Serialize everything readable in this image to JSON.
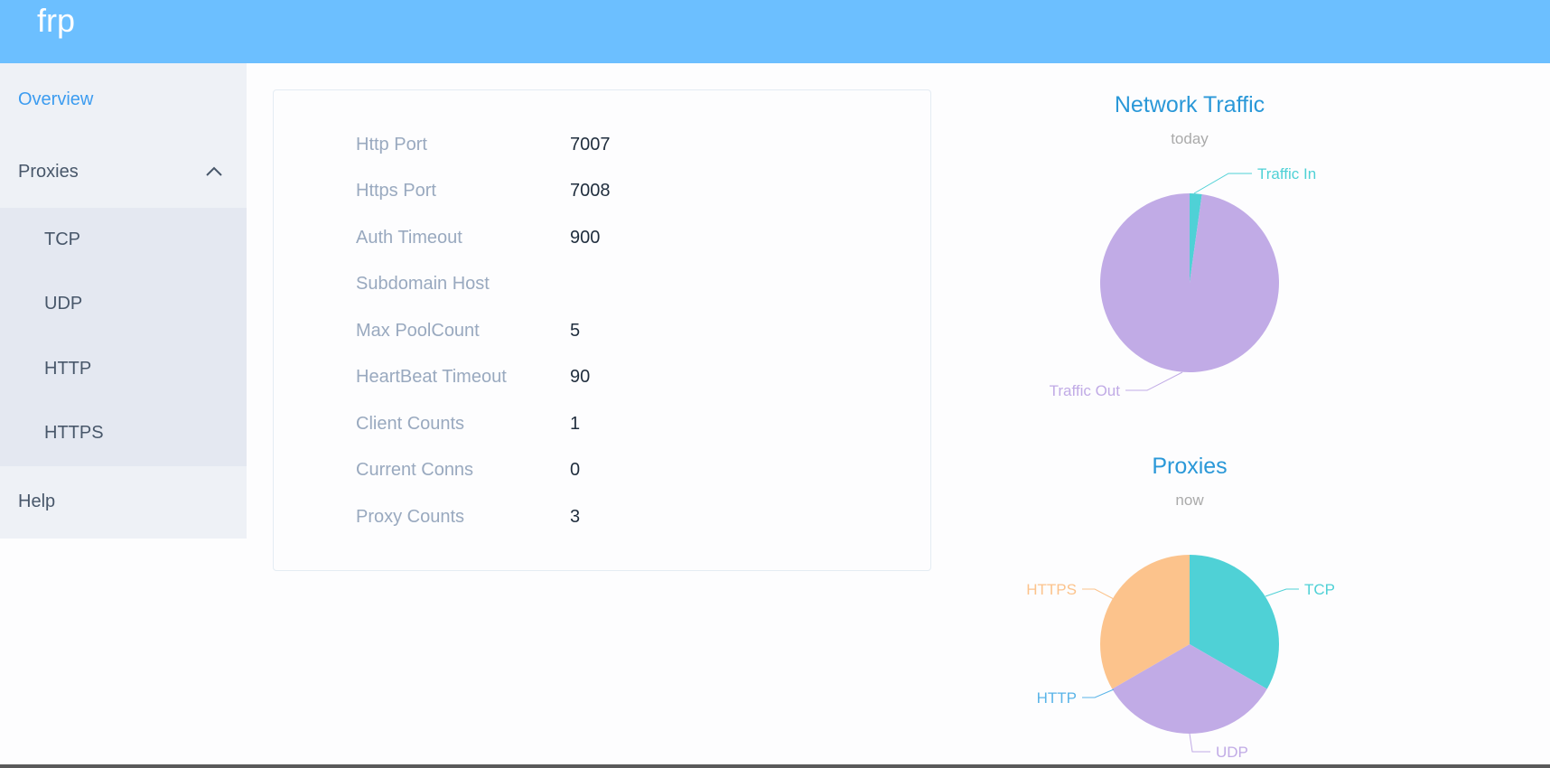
{
  "header": {
    "brand": "frp"
  },
  "sidebar": {
    "overview": "Overview",
    "proxies": "Proxies",
    "sub_items": [
      "TCP",
      "UDP",
      "HTTP",
      "HTTPS"
    ],
    "help": "Help"
  },
  "server_info": [
    {
      "label": "Http Port",
      "value": "7007"
    },
    {
      "label": "Https Port",
      "value": "7008"
    },
    {
      "label": "Auth Timeout",
      "value": "900"
    },
    {
      "label": "Subdomain Host",
      "value": ""
    },
    {
      "label": "Max PoolCount",
      "value": "5"
    },
    {
      "label": "HeartBeat Timeout",
      "value": "90"
    },
    {
      "label": "Client Counts",
      "value": "1"
    },
    {
      "label": "Current Conns",
      "value": "0"
    },
    {
      "label": "Proxy Counts",
      "value": "3"
    }
  ],
  "colors": {
    "accent": "#6cbfff",
    "active": "#3c9cf0",
    "teal": "#4fd1d6",
    "purple": "#c1abe6",
    "orange": "#fcc38c",
    "blue_label": "#59b4e8"
  },
  "chart_data": [
    {
      "type": "pie",
      "title": "Network Traffic",
      "subtitle": "today",
      "slices": [
        {
          "name": "Traffic In",
          "value": 2.2,
          "color": "#4fd1d6"
        },
        {
          "name": "Traffic Out",
          "value": 97.8,
          "color": "#c1abe6"
        }
      ]
    },
    {
      "type": "pie",
      "title": "Proxies",
      "subtitle": "now",
      "slices": [
        {
          "name": "TCP",
          "value": 1,
          "color": "#4fd1d6"
        },
        {
          "name": "UDP",
          "value": 1,
          "color": "#c1abe6"
        },
        {
          "name": "HTTP",
          "value": 0,
          "color": "#59b4e8"
        },
        {
          "name": "HTTPS",
          "value": 1,
          "color": "#fcc38c"
        }
      ]
    }
  ]
}
